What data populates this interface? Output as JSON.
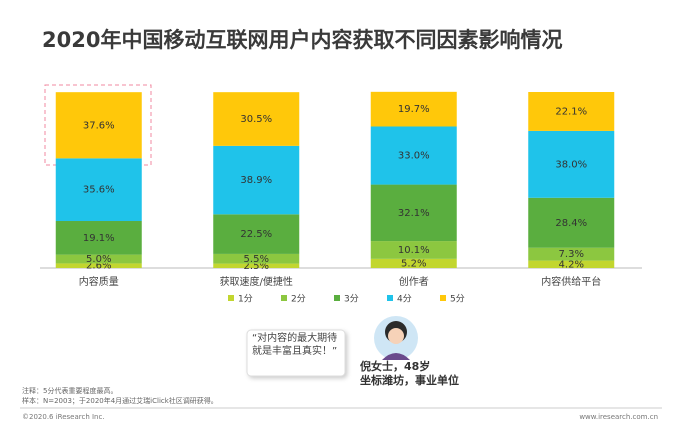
{
  "chart_data": {
    "type": "stacked-bar",
    "title": "2020年中国移动互联网用户内容获取不同因素影响情况",
    "categories": [
      "内容质量",
      "获取速度/便捷性",
      "创作者",
      "内容供给平台"
    ],
    "ylim": [
      0,
      100
    ],
    "series": [
      {
        "name": "1分",
        "color": "#c2d62f",
        "values": [
          2.6,
          2.5,
          5.2,
          4.2
        ],
        "value_labels": [
          "2.6%",
          "2.5%",
          "5.2%",
          "4.2%"
        ]
      },
      {
        "name": "2分",
        "color": "#8cc740",
        "values": [
          5.0,
          5.5,
          10.1,
          7.3
        ],
        "value_labels": [
          "5.0%",
          "5.5%",
          "10.1%",
          "7.3%"
        ]
      },
      {
        "name": "3分",
        "color": "#5aae3f",
        "values": [
          19.1,
          22.5,
          32.1,
          28.4
        ],
        "value_labels": [
          "19.1%",
          "22.5%",
          "32.1%",
          "28.4%"
        ]
      },
      {
        "name": "4分",
        "color": "#1fc3ea",
        "values": [
          35.6,
          38.9,
          33.0,
          38.0
        ],
        "value_labels": [
          "35.6%",
          "38.9%",
          "33.0%",
          "38.0%"
        ]
      },
      {
        "name": "5分",
        "color": "#ffc80a",
        "values": [
          37.6,
          30.5,
          19.7,
          22.1
        ],
        "value_labels": [
          "37.6%",
          "30.5%",
          "19.7%",
          "22.1%"
        ]
      }
    ]
  },
  "quote": "“对内容的最大期待就是丰富且真实！”",
  "persona": [
    "倪女士，48岁",
    "坐标潍坊，事业单位"
  ],
  "notes": [
    "注释：5分代表重要程度最高。",
    "样本：N=2003；于2020年4月通过艾瑞iClick社区调研获得。"
  ],
  "footer": {
    "copyright": "©2020.6 iResearch Inc.",
    "website": "www.iresearch.com.cn"
  }
}
